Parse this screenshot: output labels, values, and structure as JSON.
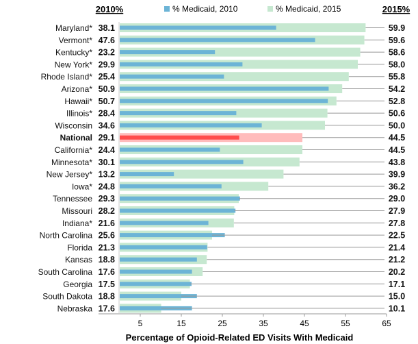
{
  "chart_data": {
    "type": "bar",
    "orientation": "horizontal",
    "xlabel": "Percentage of Opioid-Related ED Visits With Medicaid",
    "xlim": [
      0,
      65
    ],
    "xticks": [
      5,
      15,
      25,
      35,
      45,
      55,
      65
    ],
    "left_header": "2010%",
    "right_header": "2015%",
    "legend_position": "top",
    "highlight_category": "National",
    "colors": {
      "2010": "#6cb4d6",
      "2015": "#c6e8d0",
      "highlight_2010": "#ff4d4d",
      "highlight_2015": "#ffbcbc",
      "highlight_text": "#ff2a2a"
    },
    "categories": [
      "Maryland*",
      "Vermont*",
      "Kentucky*",
      "New York*",
      "Rhode Island*",
      "Arizona*",
      "Hawaii*",
      "Illinois*",
      "Wisconsin",
      "National",
      "California*",
      "Minnesota*",
      "New Jersey*",
      "Iowa*",
      "Tennessee",
      "Missouri",
      "Indiana*",
      "North Carolina",
      "Florida",
      "Kansas",
      "South Carolina",
      "Georgia",
      "South Dakota",
      "Nebraska"
    ],
    "series": [
      {
        "name": "% Medicaid, 2010",
        "values": [
          38.1,
          47.6,
          23.2,
          29.9,
          25.4,
          50.9,
          50.7,
          28.4,
          34.6,
          29.1,
          24.4,
          30.1,
          13.2,
          24.8,
          29.3,
          28.2,
          21.6,
          25.6,
          21.3,
          18.8,
          17.6,
          17.5,
          18.8,
          17.6
        ]
      },
      {
        "name": "% Medicaid, 2015",
        "values": [
          59.9,
          59.6,
          58.6,
          58.0,
          55.8,
          54.2,
          52.8,
          50.6,
          50.0,
          44.5,
          44.5,
          43.8,
          39.9,
          36.2,
          29.0,
          27.9,
          27.8,
          22.5,
          21.4,
          21.2,
          20.2,
          17.1,
          15.0,
          10.1
        ]
      }
    ]
  }
}
